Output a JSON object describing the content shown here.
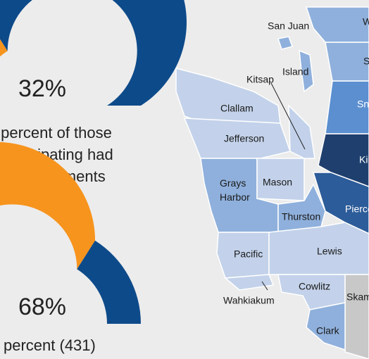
{
  "chart_data": [
    {
      "type": "gauge",
      "values": [
        32
      ],
      "value_labels": [
        "32%"
      ],
      "ylim": [
        0,
        100
      ],
      "colors": [
        "#f7941d",
        "#0d4a8a"
      ],
      "caption": [
        "percent of those",
        "participating had",
        "endorsements"
      ]
    },
    {
      "type": "gauge",
      "values": [
        68
      ],
      "value_labels": [
        "68%"
      ],
      "ylim": [
        0,
        100
      ],
      "colors": [
        "#f7941d",
        "#0d4a8a"
      ],
      "caption": [
        "percent (431)"
      ]
    }
  ],
  "map": {
    "counties": [
      "San Juan",
      "Whatcom",
      "Island",
      "Skagit",
      "Kitsap",
      "Snohomish",
      "Clallam",
      "Jefferson",
      "King",
      "Grays Harbor",
      "Mason",
      "Pierce",
      "Thurston",
      "Lewis",
      "Pacific",
      "Cowlitz",
      "Wahkiakum",
      "Skamania",
      "Clark"
    ]
  }
}
